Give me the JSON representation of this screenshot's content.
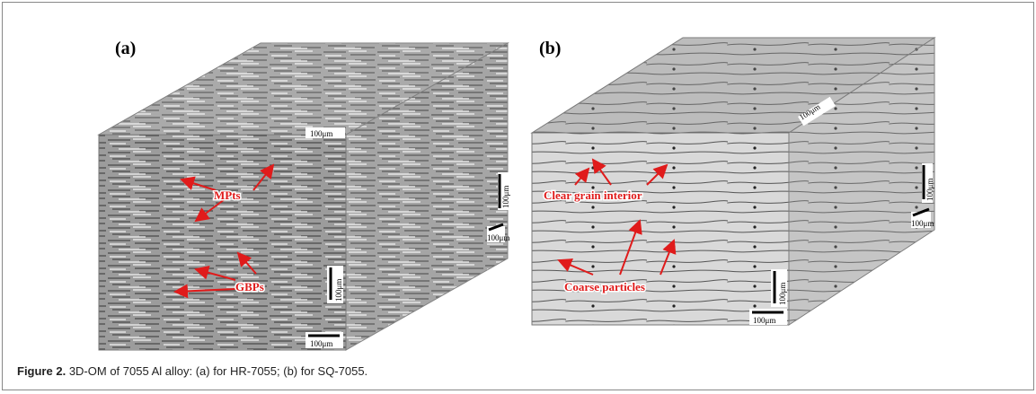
{
  "figure": {
    "panels": [
      {
        "label": "(a)",
        "annotations": [
          "MPts",
          "GBPs"
        ],
        "scale_bars": [
          "100μm",
          "100μm",
          "100μm",
          "100μm",
          "100μm"
        ]
      },
      {
        "label": "(b)",
        "annotations": [
          "Clear grain interior",
          "Coarse particles"
        ],
        "scale_bars": [
          "100μm",
          "100μm",
          "100μm",
          "100μm",
          "100μm"
        ]
      }
    ],
    "caption": {
      "label": "Figure 2.",
      "text": "3D-OM of 7055 Al alloy: (a) for HR-7055; (b) for SQ-7055."
    }
  }
}
